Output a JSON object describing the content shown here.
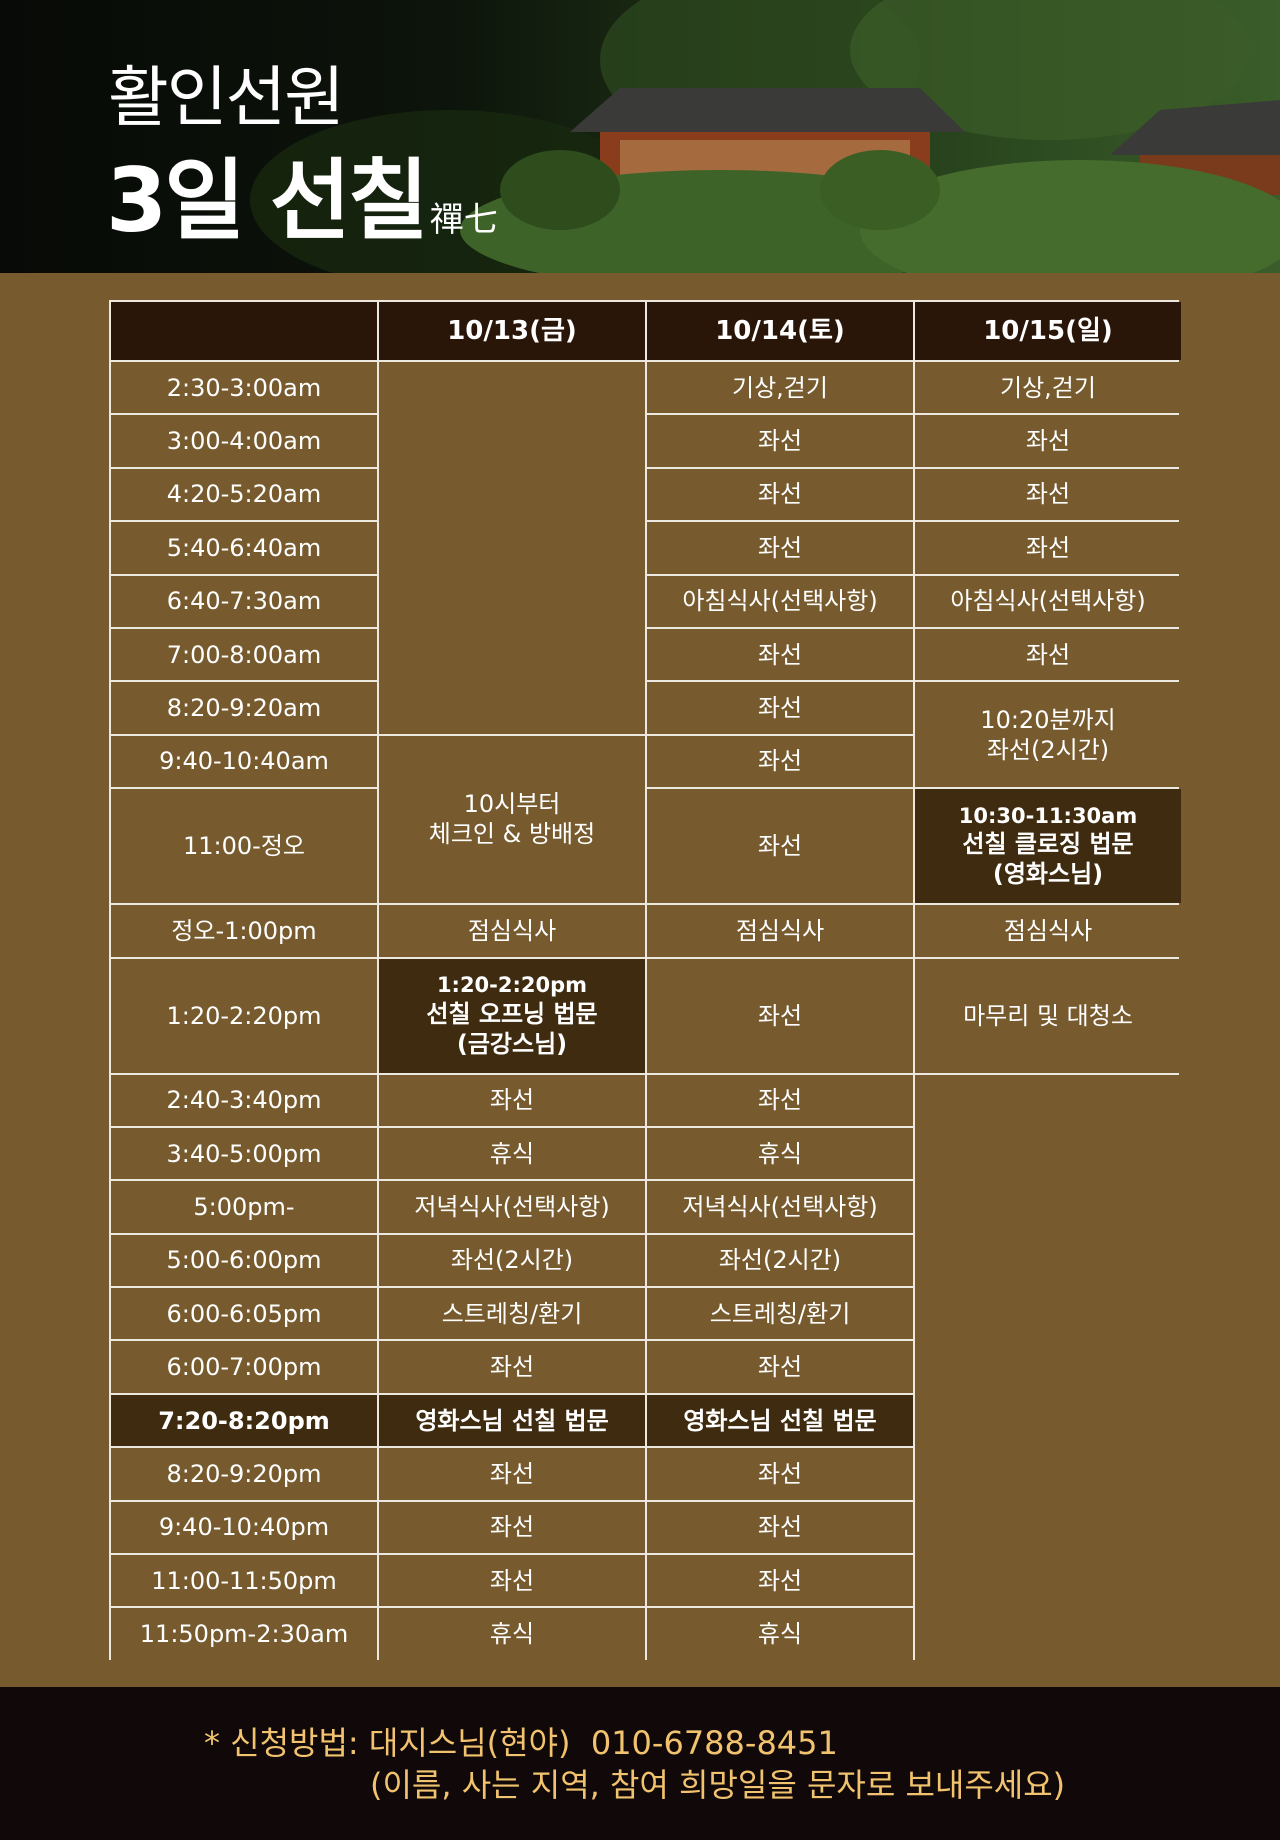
{
  "header": {
    "title_line1": "활인선원",
    "title_line2": "3일 선칠",
    "title_hanja": "禪七"
  },
  "colors": {
    "brown": "#775b2e",
    "header_cell": "#2a1609",
    "highlight": "#3f2c10",
    "footer_bg": "#110809",
    "footer_text": "#f2c36e"
  },
  "table": {
    "columns": [
      "",
      "10/13(금)",
      "10/14(토)",
      "10/15(일)"
    ],
    "rows": [
      {
        "time": "2:30-3:00am",
        "cells": [
          {
            "text": ""
          },
          {
            "text": "기상,걷기"
          },
          {
            "text": "기상,걷기"
          }
        ]
      },
      {
        "time": "3:00-4:00am",
        "cells": [
          {
            "text": "좌선"
          },
          {
            "text": "좌선"
          }
        ]
      },
      {
        "time": "4:20-5:20am",
        "cells": [
          {
            "text": "좌선"
          },
          {
            "text": "좌선"
          }
        ]
      },
      {
        "time": "5:40-6:40am",
        "cells": [
          {
            "text": "좌선"
          },
          {
            "text": "좌선"
          }
        ]
      },
      {
        "time": "6:40-7:30am",
        "cells": [
          {
            "text": "아침식사(선택사항)"
          },
          {
            "text": "아침식사(선택사항)"
          }
        ]
      },
      {
        "time": "7:00-8:00am",
        "cells": [
          {
            "text": "좌선"
          },
          {
            "text": "좌선"
          }
        ]
      },
      {
        "time": "8:20-9:20am",
        "cells": [
          {
            "text": "좌선"
          },
          {
            "text": "10:20분까지\n좌선(2시간)"
          }
        ]
      },
      {
        "time": "9:40-10:40am",
        "cells": [
          {
            "text": "10시부터\n체크인 & 방배정"
          },
          {
            "text": "좌선"
          }
        ]
      },
      {
        "time": "11:00-정오",
        "cells": [
          {
            "text": "좌선"
          },
          {
            "highlight": true,
            "sub": "10:30-11:30am",
            "text": "선칠 클로징 법문\n(영화스님)"
          }
        ]
      },
      {
        "time": "정오-1:00pm",
        "cells": [
          {
            "text": "점심식사"
          },
          {
            "text": "점심식사"
          },
          {
            "text": "점심식사"
          }
        ]
      },
      {
        "time": "1:20-2:20pm",
        "cells": [
          {
            "highlight": true,
            "sub": "1:20-2:20pm",
            "text": "선칠 오프닝 법문\n(금강스님)"
          },
          {
            "text": "좌선"
          },
          {
            "text": "마무리 및 대청소"
          }
        ]
      },
      {
        "time": "2:40-3:40pm",
        "cells": [
          {
            "text": "좌선"
          },
          {
            "text": "좌선"
          },
          {
            "text": ""
          }
        ]
      },
      {
        "time": "3:40-5:00pm",
        "cells": [
          {
            "text": "휴식"
          },
          {
            "text": "휴식"
          }
        ]
      },
      {
        "time": "5:00pm-",
        "cells": [
          {
            "text": "저녁식사(선택사항)"
          },
          {
            "text": "저녁식사(선택사항)"
          }
        ]
      },
      {
        "time": "5:00-6:00pm",
        "cells": [
          {
            "text": "좌선(2시간)"
          },
          {
            "text": "좌선(2시간)"
          }
        ]
      },
      {
        "time": "6:00-6:05pm",
        "cells": [
          {
            "text": "스트레칭/환기"
          },
          {
            "text": "스트레칭/환기"
          }
        ]
      },
      {
        "time": "6:00-7:00pm",
        "cells": [
          {
            "text": "좌선"
          },
          {
            "text": "좌선"
          }
        ]
      },
      {
        "time": "7:20-8:20pm",
        "time_highlight": true,
        "cells": [
          {
            "highlight": true,
            "text": "영화스님 선칠 법문"
          },
          {
            "highlight": true,
            "text": "영화스님 선칠 법문"
          }
        ]
      },
      {
        "time": "8:20-9:20pm",
        "cells": [
          {
            "text": "좌선"
          },
          {
            "text": "좌선"
          }
        ]
      },
      {
        "time": "9:40-10:40pm",
        "cells": [
          {
            "text": "좌선"
          },
          {
            "text": "좌선"
          }
        ]
      },
      {
        "time": "11:00-11:50pm",
        "cells": [
          {
            "text": "좌선"
          },
          {
            "text": "좌선"
          }
        ]
      },
      {
        "time": "11:50pm-2:30am",
        "cells": [
          {
            "text": "휴식"
          },
          {
            "text": "휴식"
          }
        ]
      }
    ]
  },
  "footer": {
    "line1": "* 신청방법: 대지스님(현야)  010-6788-8451",
    "line2": "(이름, 사는 지역, 참여 희망일을 문자로 보내주세요)"
  }
}
